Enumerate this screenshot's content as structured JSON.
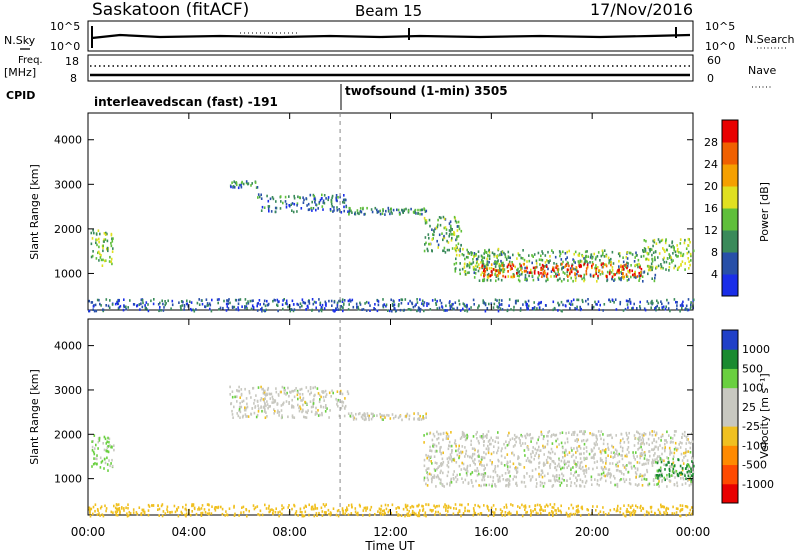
{
  "header": {
    "station": "Saskatoon (fitACF)",
    "beam": "Beam 15",
    "date": "17/Nov/2016"
  },
  "strips": {
    "nsky": {
      "label": "N.Sky",
      "tick_top": "10^5",
      "tick_bottom": "10^0"
    },
    "nsearch": {
      "label": "N.Search",
      "tick_top": "10^5",
      "tick_bottom": "10^0"
    },
    "freq": {
      "label_line1": "Freq.",
      "label_line2": "[MHz]",
      "tick_top": "18",
      "tick_bottom": "8"
    },
    "nave": {
      "label": "Nave",
      "tick_top": "60",
      "tick_bottom": "0"
    },
    "cpid": {
      "label": "CPID"
    }
  },
  "cpid_segments": [
    {
      "name": "interleavedscan (fast) -191",
      "start_hour": 0,
      "end_hour": 10
    },
    {
      "name": "twofsound (1-min) 3505",
      "start_hour": 10,
      "end_hour": 24
    }
  ],
  "colors": {
    "power": [
      "#1a2ee8",
      "#2850a8",
      "#3a8a5a",
      "#5fbf3a",
      "#e0e020",
      "#f5a000",
      "#f06000",
      "#e80000"
    ],
    "velocity": [
      "#e80000",
      "#ff4a00",
      "#ff8a00",
      "#f0c020",
      "#c8c8c0",
      "#c8c8c0",
      "#6ad040",
      "#1a8a30",
      "#2040c8"
    ]
  },
  "chart_data": [
    {
      "type": "heatmap",
      "name": "power",
      "xlabel": "",
      "ylabel": "Slant Range [km]",
      "xlim": [
        0,
        24
      ],
      "ylim": [
        180,
        4600
      ],
      "x_ticks": [
        "00:00",
        "04:00",
        "08:00",
        "12:00",
        "16:00",
        "20:00",
        "00:00"
      ],
      "y_ticks": [
        1000,
        2000,
        3000,
        4000
      ],
      "colorbar": {
        "label": "Power [dB]",
        "ticks": [
          4,
          8,
          12,
          16,
          20,
          24,
          28
        ],
        "range": [
          0,
          32
        ]
      },
      "regions": [
        {
          "t0": 0.1,
          "t1": 1.0,
          "r0": 1200,
          "r1": 2000,
          "value": 14
        },
        {
          "t0": 5.6,
          "t1": 6.7,
          "r0": 2950,
          "r1": 3100,
          "value": 9
        },
        {
          "t0": 6.7,
          "t1": 10.3,
          "r0": 2400,
          "r1": 2800,
          "value": 8
        },
        {
          "t0": 10.3,
          "t1": 13.4,
          "r0": 2350,
          "r1": 2500,
          "value": 10
        },
        {
          "t0": 13.3,
          "t1": 14.8,
          "r0": 1500,
          "r1": 2300,
          "value": 12
        },
        {
          "t0": 14.5,
          "t1": 16.5,
          "r0": 1000,
          "r1": 1600,
          "value": 14
        },
        {
          "t0": 15.0,
          "t1": 22.5,
          "r0": 850,
          "r1": 1550,
          "value": 12
        },
        {
          "t0": 15.5,
          "t1": 22.0,
          "r0": 950,
          "r1": 1250,
          "value": 28
        },
        {
          "t0": 22.0,
          "t1": 24.0,
          "r0": 1100,
          "r1": 1800,
          "value": 14
        },
        {
          "t0": 0.0,
          "t1": 24.0,
          "r0": 180,
          "r1": 450,
          "value": 6
        }
      ]
    },
    {
      "type": "heatmap",
      "name": "velocity",
      "xlabel": "Time UT",
      "ylabel": "Slant Range [km]",
      "xlim": [
        0,
        24
      ],
      "ylim": [
        180,
        4600
      ],
      "x_ticks": [
        "00:00",
        "04:00",
        "08:00",
        "12:00",
        "16:00",
        "20:00",
        "00:00"
      ],
      "y_ticks": [
        1000,
        2000,
        3000,
        4000
      ],
      "colorbar": {
        "label": "Velocity [m s⁻¹]",
        "ticks": [
          "1000",
          "500",
          "100",
          "25",
          "-25",
          "-100",
          "-500",
          "-1000"
        ]
      },
      "regions": [
        {
          "t0": 0.1,
          "t1": 1.0,
          "r0": 1200,
          "r1": 2000,
          "value": 40
        },
        {
          "t0": 5.6,
          "t1": 10.3,
          "r0": 2400,
          "r1": 3100,
          "value": 0
        },
        {
          "t0": 10.3,
          "t1": 13.4,
          "r0": 2350,
          "r1": 2500,
          "value": 0
        },
        {
          "t0": 13.3,
          "t1": 24.0,
          "r0": 850,
          "r1": 2100,
          "value": 0
        },
        {
          "t0": 22.5,
          "t1": 24.0,
          "r0": 1000,
          "r1": 1500,
          "value": 120
        },
        {
          "t0": 0.0,
          "t1": 24.0,
          "r0": 180,
          "r1": 450,
          "value": -60
        }
      ]
    }
  ]
}
